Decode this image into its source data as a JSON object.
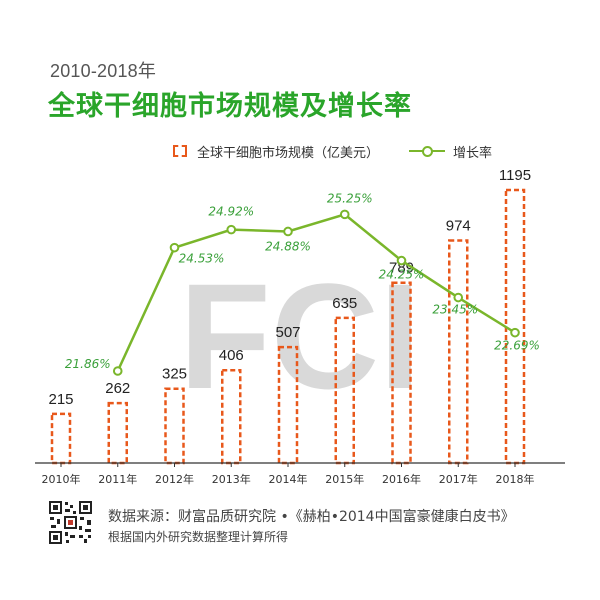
{
  "header": {
    "subtitle": "2010-2018年",
    "title": "全球干细胞市场规模及增长率"
  },
  "legend": {
    "bar_label": "全球干细胞市场规模（亿美元）",
    "line_label": "增长率"
  },
  "watermark": "FCI",
  "chart_data": {
    "type": "bar",
    "categories": [
      "2010年",
      "2011年",
      "2012年",
      "2013年",
      "2014年",
      "2015年",
      "2016年",
      "2017年",
      "2018年"
    ],
    "series": [
      {
        "name": "全球干细胞市场规模（亿美元）",
        "type": "bar",
        "values": [
          215,
          262,
          325,
          406,
          507,
          635,
          789,
          974,
          1195
        ],
        "labels": [
          "215",
          "262",
          "325",
          "406",
          "507",
          "635",
          "789",
          "974",
          "1195"
        ]
      },
      {
        "name": "增长率",
        "type": "line",
        "x": [
          "2011年",
          "2012年",
          "2013年",
          "2014年",
          "2015年",
          "2016年",
          "2017年",
          "2018年"
        ],
        "values": [
          21.86,
          24.53,
          24.92,
          24.88,
          25.25,
          24.25,
          23.45,
          22.69
        ],
        "labels": [
          "21.86%",
          "24.53%",
          "24.92%",
          "24.88%",
          "25.25%",
          "24.25%",
          "23.45%",
          "22.69%"
        ]
      }
    ],
    "colors": {
      "bar": "#e8581b",
      "line": "#7ab62b",
      "line_label": "#3aa03a",
      "axis": "#333333",
      "watermark": "#d9d9d9"
    },
    "grid": false,
    "legend_position": "top"
  },
  "footer": {
    "source_line1": "数据来源：财富品质研究院 •《赫柏•2014中国富豪健康白皮书》",
    "source_line2": "根据国内外研究数据整理计算所得",
    "qr_icon": "qr-code-icon"
  }
}
